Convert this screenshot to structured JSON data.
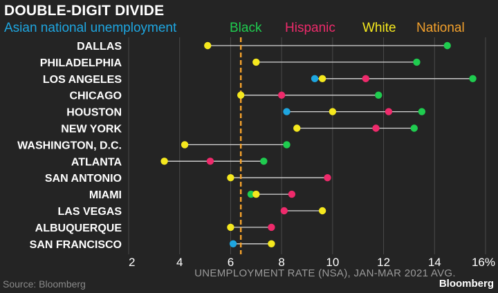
{
  "chart_data": {
    "type": "dot-range",
    "title": "DOUBLE-DIGIT DIVIDE",
    "legend": [
      {
        "key": "asian",
        "label": "Asian national unemployment",
        "color": "#1ea6e0"
      },
      {
        "key": "black",
        "label": "Black",
        "color": "#1fcc4f"
      },
      {
        "key": "hispanic",
        "label": "Hispanic",
        "color": "#ee2a6b"
      },
      {
        "key": "white",
        "label": "White",
        "color": "#f5e81e"
      },
      {
        "key": "national",
        "label": "National",
        "color": "#f2a02c"
      }
    ],
    "xlabel": "UNEMPLOYMENT RATE (NSA), JAN-MAR 2021 AVG.",
    "xlim": [
      2,
      16
    ],
    "xticks": [
      {
        "value": 2,
        "label": "2"
      },
      {
        "value": 4,
        "label": "4"
      },
      {
        "value": 6,
        "label": "6"
      },
      {
        "value": 8,
        "label": "8"
      },
      {
        "value": 10,
        "label": "10"
      },
      {
        "value": 12,
        "label": "12"
      },
      {
        "value": 14,
        "label": "14"
      },
      {
        "value": 16,
        "label": "16%"
      }
    ],
    "national_rate": 6.4,
    "cities": [
      {
        "name": "DALLAS",
        "values": {
          "white": 5.1,
          "black": 14.5
        }
      },
      {
        "name": "PHILADELPHIA",
        "values": {
          "white": 7.0,
          "black": 13.3
        }
      },
      {
        "name": "LOS ANGELES",
        "values": {
          "asian": 9.3,
          "white": 9.6,
          "hispanic": 11.3,
          "black": 15.5
        }
      },
      {
        "name": "CHICAGO",
        "values": {
          "white": 6.4,
          "hispanic": 8.0,
          "black": 11.8
        }
      },
      {
        "name": "HOUSTON",
        "values": {
          "asian": 8.2,
          "white": 10.0,
          "hispanic": 12.2,
          "black": 13.5
        }
      },
      {
        "name": "NEW YORK",
        "values": {
          "white": 8.6,
          "hispanic": 11.7,
          "black": 13.2
        }
      },
      {
        "name": "WASHINGTON, D.C.",
        "values": {
          "white": 4.2,
          "black": 8.2
        }
      },
      {
        "name": "ATLANTA",
        "values": {
          "white": 3.4,
          "hispanic": 5.2,
          "black": 7.3
        }
      },
      {
        "name": "SAN ANTONIO",
        "values": {
          "white": 6.0,
          "hispanic": 9.8
        }
      },
      {
        "name": "MIAMI",
        "values": {
          "black": 6.8,
          "white": 7.0,
          "hispanic": 8.4
        }
      },
      {
        "name": "LAS VEGAS",
        "values": {
          "hispanic": 8.1,
          "white": 9.6
        }
      },
      {
        "name": "ALBUQUERQUE",
        "values": {
          "white": 6.0,
          "hispanic": 7.6
        }
      },
      {
        "name": "SAN FRANCISCO",
        "values": {
          "asian": 6.1,
          "white": 7.6
        }
      }
    ]
  },
  "source": "Source: Bloomberg",
  "brand": "Bloomberg"
}
